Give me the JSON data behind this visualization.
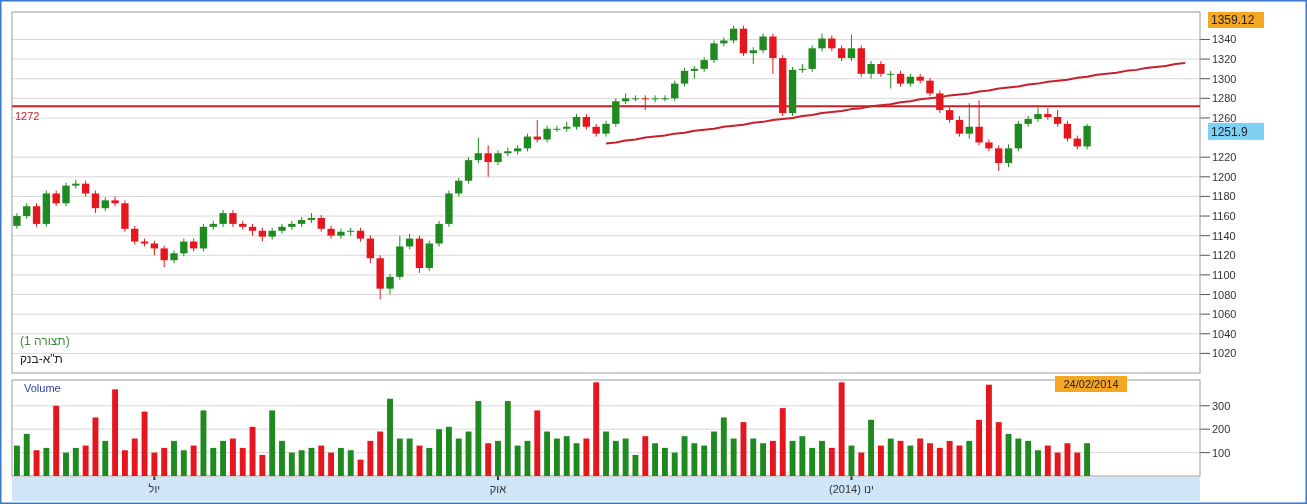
{
  "chart_data": [
    {
      "type": "candlestick",
      "annotations": [
        "(תצורה 1)",
        "ת\"א-בנק",
        "1359.12",
        "1251.9"
      ],
      "categories": [
        null,
        null,
        null,
        null,
        null,
        null,
        null,
        null,
        null,
        null,
        null,
        null,
        null,
        null,
        null,
        null,
        null,
        null,
        null,
        null,
        null,
        null,
        null,
        null,
        null,
        null,
        null,
        null,
        null,
        null,
        null,
        null,
        null,
        null,
        null,
        null,
        null,
        null,
        null,
        null,
        null,
        null,
        null,
        null,
        null,
        null,
        null,
        null,
        null,
        null,
        null,
        null,
        null,
        null,
        null,
        null,
        null,
        null,
        null,
        null,
        null,
        null,
        null,
        null,
        null,
        null,
        null,
        null,
        null,
        null,
        null,
        null,
        null,
        null,
        null,
        null,
        null,
        null,
        null,
        null,
        null,
        null,
        null,
        null,
        null,
        null,
        null,
        null,
        null,
        null,
        null,
        null,
        null,
        null,
        null,
        null,
        null,
        null,
        null,
        null,
        null,
        null,
        null,
        null,
        null,
        null,
        null,
        null,
        null,
        null,
        null,
        null,
        null,
        null,
        null,
        null,
        null,
        null,
        null,
        null,
        null
      ],
      "ohlc": [
        [
          1150,
          1163,
          1147,
          1160
        ],
        [
          1160,
          1173,
          1157,
          1170
        ],
        [
          1170,
          1173,
          1149,
          1152
        ],
        [
          1152,
          1186,
          1149,
          1183
        ],
        [
          1183,
          1186,
          1170,
          1173
        ],
        [
          1173,
          1194,
          1170,
          1191
        ],
        [
          1191,
          1197,
          1188,
          1193
        ],
        [
          1193,
          1196,
          1180,
          1183
        ],
        [
          1183,
          1186,
          1163,
          1168
        ],
        [
          1168,
          1179,
          1165,
          1176
        ],
        [
          1176,
          1180,
          1170,
          1173
        ],
        [
          1173,
          1176,
          1144,
          1147
        ],
        [
          1147,
          1150,
          1131,
          1134
        ],
        [
          1134,
          1137,
          1129,
          1132
        ],
        [
          1132,
          1135,
          1120,
          1127
        ],
        [
          1127,
          1130,
          1108,
          1115
        ],
        [
          1115,
          1125,
          1112,
          1122
        ],
        [
          1122,
          1137,
          1119,
          1134
        ],
        [
          1134,
          1137,
          1124,
          1127
        ],
        [
          1127,
          1152,
          1124,
          1149
        ],
        [
          1149,
          1155,
          1146,
          1152
        ],
        [
          1152,
          1166,
          1149,
          1163
        ],
        [
          1163,
          1166,
          1149,
          1152
        ],
        [
          1152,
          1155,
          1146,
          1149
        ],
        [
          1149,
          1152,
          1140,
          1145
        ],
        [
          1145,
          1148,
          1134,
          1139
        ],
        [
          1139,
          1148,
          1136,
          1145
        ],
        [
          1145,
          1152,
          1142,
          1149
        ],
        [
          1149,
          1155,
          1146,
          1152
        ],
        [
          1152,
          1159,
          1149,
          1156
        ],
        [
          1156,
          1163,
          1153,
          1158
        ],
        [
          1158,
          1161,
          1144,
          1147
        ],
        [
          1147,
          1150,
          1137,
          1140
        ],
        [
          1140,
          1147,
          1137,
          1144
        ],
        [
          1144,
          1148,
          1140,
          1145
        ],
        [
          1145,
          1148,
          1134,
          1137
        ],
        [
          1137,
          1140,
          1112,
          1117
        ],
        [
          1117,
          1120,
          1075,
          1086
        ],
        [
          1086,
          1101,
          1080,
          1098
        ],
        [
          1098,
          1140,
          1095,
          1129
        ],
        [
          1129,
          1142,
          1126,
          1137
        ],
        [
          1137,
          1140,
          1102,
          1107
        ],
        [
          1107,
          1135,
          1104,
          1132
        ],
        [
          1132,
          1155,
          1129,
          1152
        ],
        [
          1152,
          1186,
          1149,
          1183
        ],
        [
          1183,
          1199,
          1180,
          1196
        ],
        [
          1196,
          1220,
          1193,
          1217
        ],
        [
          1217,
          1240,
          1214,
          1224
        ],
        [
          1224,
          1232,
          1200,
          1215
        ],
        [
          1215,
          1227,
          1212,
          1224
        ],
        [
          1224,
          1230,
          1221,
          1226
        ],
        [
          1226,
          1232,
          1223,
          1229
        ],
        [
          1229,
          1244,
          1226,
          1241
        ],
        [
          1241,
          1258,
          1235,
          1238
        ],
        [
          1238,
          1252,
          1235,
          1249
        ],
        [
          1249,
          1252,
          1246,
          1249
        ],
        [
          1249,
          1256,
          1246,
          1251
        ],
        [
          1251,
          1264,
          1248,
          1261
        ],
        [
          1261,
          1264,
          1248,
          1251
        ],
        [
          1251,
          1254,
          1241,
          1244
        ],
        [
          1244,
          1257,
          1241,
          1254
        ],
        [
          1254,
          1280,
          1251,
          1277
        ],
        [
          1277,
          1285,
          1274,
          1280
        ],
        [
          1280,
          1283,
          1277,
          1280
        ],
        [
          1280,
          1283,
          1268,
          1279
        ],
        [
          1279,
          1283,
          1276,
          1280
        ],
        [
          1280,
          1283,
          1277,
          1280
        ],
        [
          1280,
          1298,
          1277,
          1295
        ],
        [
          1295,
          1311,
          1292,
          1308
        ],
        [
          1308,
          1313,
          1300,
          1310
        ],
        [
          1310,
          1322,
          1307,
          1319
        ],
        [
          1319,
          1339,
          1316,
          1336
        ],
        [
          1336,
          1342,
          1333,
          1339
        ],
        [
          1339,
          1354,
          1336,
          1351
        ],
        [
          1351,
          1354,
          1323,
          1326
        ],
        [
          1326,
          1332,
          1315,
          1329
        ],
        [
          1329,
          1346,
          1326,
          1343
        ],
        [
          1343,
          1346,
          1305,
          1321
        ],
        [
          1321,
          1324,
          1262,
          1265
        ],
        [
          1265,
          1312,
          1262,
          1309
        ],
        [
          1309,
          1315,
          1306,
          1310
        ],
        [
          1310,
          1334,
          1307,
          1331
        ],
        [
          1331,
          1346,
          1328,
          1341
        ],
        [
          1341,
          1344,
          1328,
          1331
        ],
        [
          1331,
          1334,
          1318,
          1321
        ],
        [
          1321,
          1345,
          1318,
          1331
        ],
        [
          1331,
          1334,
          1302,
          1305
        ],
        [
          1305,
          1318,
          1300,
          1315
        ],
        [
          1315,
          1318,
          1302,
          1305
        ],
        [
          1305,
          1308,
          1290,
          1305
        ],
        [
          1305,
          1308,
          1292,
          1295
        ],
        [
          1295,
          1305,
          1292,
          1302
        ],
        [
          1302,
          1305,
          1295,
          1298
        ],
        [
          1298,
          1301,
          1282,
          1285
        ],
        [
          1285,
          1288,
          1265,
          1268
        ],
        [
          1268,
          1271,
          1255,
          1258
        ],
        [
          1258,
          1262,
          1241,
          1244
        ],
        [
          1244,
          1275,
          1239,
          1251
        ],
        [
          1251,
          1278,
          1232,
          1235
        ],
        [
          1235,
          1238,
          1226,
          1229
        ],
        [
          1229,
          1232,
          1206,
          1214
        ],
        [
          1214,
          1233,
          1210,
          1229
        ],
        [
          1229,
          1257,
          1226,
          1254
        ],
        [
          1254,
          1262,
          1251,
          1259
        ],
        [
          1259,
          1271,
          1256,
          1264
        ],
        [
          1264,
          1270,
          1258,
          1261
        ],
        [
          1261,
          1268,
          1251,
          1254
        ],
        [
          1254,
          1257,
          1236,
          1239
        ],
        [
          1239,
          1242,
          1228,
          1231
        ],
        [
          1231,
          1254,
          1228,
          1251.9
        ],
        null,
        null,
        null,
        null,
        null,
        null,
        null,
        null,
        null,
        null,
        null
      ],
      "colors": [
        "#1f8a1f",
        "#1f8a1f",
        "#e5161d",
        "#1f8a1f",
        "#e5161d",
        "#1f8a1f",
        "#1f8a1f",
        "#e5161d",
        "#e5161d",
        "#1f8a1f",
        "#e5161d",
        "#e5161d",
        "#e5161d",
        "#e5161d",
        "#e5161d",
        "#e5161d",
        "#1f8a1f",
        "#1f8a1f",
        "#e5161d",
        "#1f8a1f",
        "#1f8a1f",
        "#1f8a1f",
        "#e5161d",
        "#e5161d",
        "#e5161d",
        "#e5161d",
        "#1f8a1f",
        "#1f8a1f",
        "#1f8a1f",
        "#1f8a1f",
        "#1f8a1f",
        "#e5161d",
        "#e5161d",
        "#1f8a1f",
        "#1f8a1f",
        "#e5161d",
        "#e5161d",
        "#e5161d",
        "#1f8a1f",
        "#1f8a1f",
        "#1f8a1f",
        "#e5161d",
        "#1f8a1f",
        "#1f8a1f",
        "#1f8a1f",
        "#1f8a1f",
        "#1f8a1f",
        "#1f8a1f",
        "#e5161d",
        "#1f8a1f",
        "#1f8a1f",
        "#1f8a1f",
        "#1f8a1f",
        "#e5161d",
        "#1f8a1f",
        "#1f8a1f",
        "#1f8a1f",
        "#1f8a1f",
        "#e5161d",
        "#e5161d",
        "#1f8a1f",
        "#1f8a1f",
        "#1f8a1f",
        "#1f8a1f",
        "#e5161d",
        "#1f8a1f",
        "#1f8a1f",
        "#1f8a1f",
        "#1f8a1f",
        "#1f8a1f",
        "#1f8a1f",
        "#1f8a1f",
        "#1f8a1f",
        "#1f8a1f",
        "#e5161d",
        "#1f8a1f",
        "#1f8a1f",
        "#e5161d",
        "#e5161d",
        "#1f8a1f",
        "#1f8a1f",
        "#1f8a1f",
        "#1f8a1f",
        "#e5161d",
        "#e5161d",
        "#1f8a1f",
        "#e5161d",
        "#1f8a1f",
        "#e5161d",
        "#1f8a1f",
        "#e5161d",
        "#1f8a1f",
        "#e5161d",
        "#e5161d",
        "#e5161d",
        "#e5161d",
        "#e5161d",
        "#1f8a1f",
        "#e5161d",
        "#e5161d",
        "#e5161d",
        "#1f8a1f",
        "#1f8a1f",
        "#1f8a1f",
        "#1f8a1f",
        "#e5161d",
        "#e5161d",
        "#e5161d",
        "#e5161d",
        "#1f8a1f",
        null,
        null,
        null,
        null,
        null,
        null,
        null,
        null,
        null,
        null,
        null
      ],
      "series": [
        {
          "type": "line",
          "color": "#c8202a",
          "values": [
            null,
            null,
            null,
            null,
            null,
            null,
            null,
            null,
            null,
            null,
            null,
            null,
            null,
            null,
            null,
            null,
            null,
            null,
            null,
            null,
            null,
            null,
            null,
            null,
            null,
            null,
            null,
            null,
            null,
            null,
            null,
            null,
            null,
            null,
            null,
            null,
            null,
            null,
            null,
            null,
            null,
            null,
            null,
            null,
            null,
            null,
            null,
            null,
            null,
            null,
            null,
            null,
            null,
            null,
            null,
            null,
            null,
            null,
            null,
            null,
            1234,
            1235,
            1237,
            1238,
            1240,
            1241,
            1242,
            1244,
            1245,
            1247,
            1248,
            1249,
            1251,
            1252,
            1253,
            1255,
            1256,
            1258,
            1259,
            1260,
            1262,
            1263,
            1265,
            1266,
            1267,
            1269,
            1270,
            1272,
            1273,
            1274,
            1276,
            1277,
            1279,
            1280,
            1281,
            1283,
            1284,
            1285,
            1287,
            1288,
            1290,
            1291,
            1292,
            1294,
            1295,
            1297,
            1298,
            1299,
            1301,
            1302,
            1304,
            1305,
            1306,
            1308,
            1309,
            1311,
            1312,
            1313,
            1315,
            1316,
            null
          ]
        }
      ],
      "ref_lines": [
        {
          "axis": "y",
          "value": 1272,
          "label": "1272",
          "color": "#c8202a"
        }
      ],
      "ylim": [
        1000,
        1368
      ],
      "yticks": [
        1020,
        1040,
        1060,
        1080,
        1100,
        1120,
        1140,
        1160,
        1180,
        1200,
        1220,
        1260,
        1280,
        1300,
        1320,
        1340
      ],
      "tick_labels": "y",
      "grid": "y"
    },
    {
      "type": "bar",
      "title": "Volume",
      "annotations": [
        "24/02/2014"
      ],
      "categories": [
        null,
        null,
        null,
        null,
        null,
        null,
        null,
        null,
        null,
        null,
        null,
        null,
        null,
        null,
        "יול",
        null,
        null,
        null,
        null,
        null,
        null,
        null,
        null,
        null,
        null,
        null,
        null,
        null,
        null,
        null,
        null,
        null,
        null,
        null,
        null,
        null,
        null,
        null,
        null,
        null,
        null,
        null,
        null,
        null,
        null,
        null,
        null,
        null,
        null,
        "אוק",
        null,
        null,
        null,
        null,
        null,
        null,
        null,
        null,
        null,
        null,
        null,
        null,
        null,
        null,
        null,
        null,
        null,
        null,
        null,
        null,
        null,
        null,
        null,
        null,
        null,
        null,
        null,
        null,
        null,
        null,
        null,
        null,
        null,
        null,
        null,
        "ינו (2014)",
        null,
        null,
        null,
        null,
        null,
        null,
        null,
        null,
        null,
        null,
        null,
        null,
        null,
        null,
        null,
        null,
        null,
        null,
        null,
        null,
        null,
        null,
        null,
        null,
        null,
        null,
        null,
        null,
        null,
        null,
        null,
        null,
        null,
        null,
        null
      ],
      "values": [
        130,
        180,
        110,
        120,
        300,
        100,
        120,
        130,
        250,
        150,
        370,
        110,
        160,
        275,
        100,
        120,
        150,
        110,
        130,
        280,
        120,
        150,
        160,
        120,
        210,
        90,
        280,
        150,
        100,
        110,
        120,
        130,
        100,
        120,
        110,
        70,
        150,
        190,
        330,
        160,
        160,
        130,
        120,
        200,
        210,
        160,
        190,
        320,
        140,
        150,
        320,
        130,
        150,
        280,
        190,
        160,
        170,
        140,
        160,
        400,
        190,
        150,
        160,
        90,
        170,
        140,
        120,
        100,
        170,
        140,
        130,
        190,
        250,
        160,
        230,
        160,
        140,
        150,
        290,
        150,
        170,
        120,
        150,
        120,
        400,
        130,
        100,
        240,
        130,
        160,
        150,
        130,
        160,
        140,
        120,
        150,
        130,
        150,
        240,
        390,
        230,
        180,
        160,
        150,
        110,
        130,
        100,
        140,
        100,
        140,
        null,
        null,
        null,
        null,
        null,
        null,
        null,
        null,
        null,
        null,
        null
      ],
      "colors": [
        "#1f8a1f",
        "#1f8a1f",
        "#e5161d",
        "#1f8a1f",
        "#e5161d",
        "#1f8a1f",
        "#1f8a1f",
        "#e5161d",
        "#e5161d",
        "#1f8a1f",
        "#e5161d",
        "#e5161d",
        "#e5161d",
        "#e5161d",
        "#e5161d",
        "#e5161d",
        "#1f8a1f",
        "#1f8a1f",
        "#e5161d",
        "#1f8a1f",
        "#1f8a1f",
        "#1f8a1f",
        "#e5161d",
        "#e5161d",
        "#e5161d",
        "#e5161d",
        "#1f8a1f",
        "#1f8a1f",
        "#1f8a1f",
        "#1f8a1f",
        "#1f8a1f",
        "#e5161d",
        "#e5161d",
        "#1f8a1f",
        "#1f8a1f",
        "#e5161d",
        "#e5161d",
        "#e5161d",
        "#1f8a1f",
        "#1f8a1f",
        "#1f8a1f",
        "#e5161d",
        "#1f8a1f",
        "#1f8a1f",
        "#1f8a1f",
        "#1f8a1f",
        "#1f8a1f",
        "#1f8a1f",
        "#e5161d",
        "#1f8a1f",
        "#1f8a1f",
        "#1f8a1f",
        "#1f8a1f",
        "#e5161d",
        "#1f8a1f",
        "#1f8a1f",
        "#1f8a1f",
        "#1f8a1f",
        "#e5161d",
        "#e5161d",
        "#1f8a1f",
        "#1f8a1f",
        "#1f8a1f",
        "#1f8a1f",
        "#e5161d",
        "#1f8a1f",
        "#1f8a1f",
        "#1f8a1f",
        "#1f8a1f",
        "#1f8a1f",
        "#1f8a1f",
        "#1f8a1f",
        "#1f8a1f",
        "#1f8a1f",
        "#e5161d",
        "#1f8a1f",
        "#1f8a1f",
        "#e5161d",
        "#e5161d",
        "#1f8a1f",
        "#1f8a1f",
        "#1f8a1f",
        "#1f8a1f",
        "#e5161d",
        "#e5161d",
        "#1f8a1f",
        "#e5161d",
        "#1f8a1f",
        "#e5161d",
        "#1f8a1f",
        "#e5161d",
        "#1f8a1f",
        "#e5161d",
        "#e5161d",
        "#e5161d",
        "#e5161d",
        "#e5161d",
        "#1f8a1f",
        "#e5161d",
        "#e5161d",
        "#e5161d",
        "#1f8a1f",
        "#1f8a1f",
        "#1f8a1f",
        "#1f8a1f",
        "#e5161d",
        "#e5161d",
        "#e5161d",
        "#e5161d",
        "#1f8a1f",
        null,
        null,
        null,
        null,
        null,
        null,
        null,
        null,
        null,
        null,
        null
      ],
      "ylim": [
        0,
        410
      ],
      "yticks": [
        100,
        200,
        300
      ],
      "grid": "y"
    }
  ]
}
